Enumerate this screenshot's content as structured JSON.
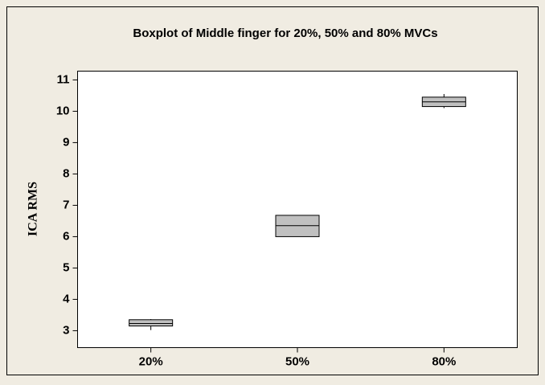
{
  "chart_data": {
    "type": "box",
    "title": "Boxplot of Middle finger for 20%, 50% and 80% MVCs",
    "y_label": "ICA RMS",
    "categories": [
      "20%",
      "50%",
      "80%"
    ],
    "min": [
      3.02,
      6.0,
      10.1
    ],
    "q1": [
      3.15,
      6.0,
      10.15
    ],
    "median": [
      3.23,
      6.35,
      10.3
    ],
    "q3": [
      3.35,
      6.68,
      10.45
    ],
    "max": [
      3.37,
      6.68,
      10.55
    ],
    "color": "#c0c0c0",
    "ylim": [
      2.46,
      11.28
    ],
    "yticks": [
      3,
      4,
      5,
      6,
      7,
      8,
      9,
      10,
      11
    ]
  }
}
